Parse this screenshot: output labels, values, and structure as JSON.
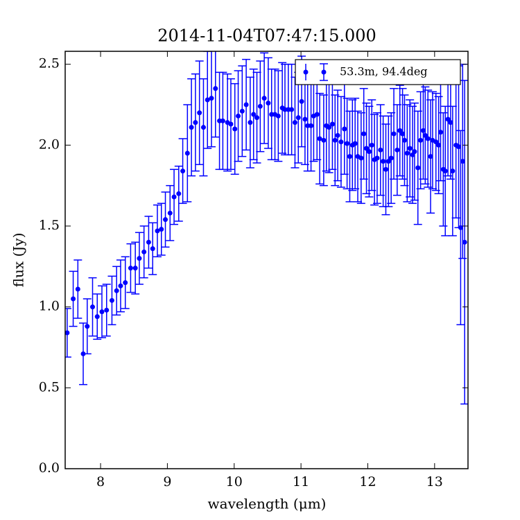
{
  "chart_data": {
    "type": "errorbar",
    "title": "2014-11-04T07:47:15.000",
    "x_label": "wavelength (μm)",
    "y_label": "flux (Jy)",
    "xlim": [
      7.47,
      13.5
    ],
    "ylim": [
      0,
      2.58
    ],
    "xticks": [
      8,
      9,
      10,
      11,
      12,
      13
    ],
    "yticks": [
      {
        "value": 0,
        "label": "0.0"
      },
      {
        "value": 0.5,
        "label": "0.5"
      },
      {
        "value": 1,
        "label": "1.0"
      },
      {
        "value": 1.5,
        "label": "1.5"
      },
      {
        "value": 2,
        "label": "2.0"
      },
      {
        "value": 2.5,
        "label": "2.5"
      }
    ],
    "legend": "upper right",
    "x": [
      7.5,
      7.59,
      7.66,
      7.74,
      7.8,
      7.88,
      7.95,
      8.02,
      8.09,
      8.17,
      8.24,
      8.3,
      8.37,
      8.45,
      8.52,
      8.58,
      8.65,
      8.72,
      8.78,
      8.85,
      8.91,
      8.97,
      9.04,
      9.1,
      9.17,
      9.23,
      9.3,
      9.36,
      9.42,
      9.48,
      9.54,
      9.6,
      9.66,
      9.72,
      9.78,
      9.83,
      9.9,
      9.95,
      10.01,
      10.06,
      10.12,
      10.18,
      10.24,
      10.29,
      10.34,
      10.39,
      10.45,
      10.51,
      10.56,
      10.61,
      10.66,
      10.72,
      10.76,
      10.81,
      10.86,
      10.91,
      10.96,
      11.01,
      11.06,
      11.1,
      11.15,
      11.19,
      11.24,
      11.28,
      11.34,
      11.38,
      11.42,
      11.47,
      11.51,
      11.55,
      11.6,
      11.65,
      11.69,
      11.73,
      11.77,
      11.81,
      11.85,
      11.9,
      11.94,
      11.98,
      12.02,
      12.06,
      12.1,
      12.14,
      12.19,
      12.23,
      12.27,
      12.31,
      12.35,
      12.39,
      12.44,
      12.48,
      12.52,
      12.55,
      12.59,
      12.63,
      12.67,
      12.7,
      12.75,
      12.79,
      12.83,
      12.86,
      12.9,
      12.94,
      12.97,
      13.02,
      13.06,
      13.09,
      13.13,
      13.16,
      13.2,
      13.24,
      13.27,
      13.32,
      13.36,
      13.39,
      13.42,
      13.45
    ],
    "series": [
      {
        "name": "53.3m, 94.4deg",
        "color": "#0000ff",
        "values": [
          0.84,
          1.05,
          1.11,
          0.71,
          0.88,
          1.0,
          0.94,
          0.97,
          0.98,
          1.04,
          1.1,
          1.13,
          1.15,
          1.24,
          1.24,
          1.3,
          1.34,
          1.4,
          1.36,
          1.47,
          1.48,
          1.54,
          1.58,
          1.68,
          1.7,
          1.84,
          1.95,
          2.11,
          2.14,
          2.2,
          2.11,
          2.28,
          2.29,
          2.35,
          2.15,
          2.15,
          2.14,
          2.13,
          2.1,
          2.18,
          2.21,
          2.25,
          2.14,
          2.19,
          2.17,
          2.24,
          2.29,
          2.26,
          2.19,
          2.19,
          2.18,
          2.23,
          2.22,
          2.22,
          2.22,
          2.14,
          2.17,
          2.27,
          2.16,
          2.12,
          2.12,
          2.18,
          2.19,
          2.04,
          2.03,
          2.12,
          2.11,
          2.13,
          2.03,
          2.06,
          2.02,
          2.1,
          2.01,
          1.93,
          2.0,
          2.01,
          1.93,
          1.92,
          2.07,
          1.98,
          1.96,
          2.0,
          1.91,
          1.92,
          1.97,
          1.9,
          1.85,
          1.9,
          1.92,
          2.07,
          1.97,
          2.09,
          2.07,
          2.03,
          1.95,
          1.98,
          1.94,
          1.96,
          1.86,
          2.03,
          2.09,
          2.06,
          2.04,
          1.93,
          2.03,
          2.02,
          2.0,
          2.08,
          1.85,
          1.84,
          2.16,
          2.14,
          1.84,
          2.0,
          1.99,
          1.49,
          1.9,
          1.4
        ],
        "errors": [
          0.15,
          0.17,
          0.18,
          0.19,
          0.17,
          0.18,
          0.14,
          0.16,
          0.16,
          0.15,
          0.15,
          0.16,
          0.16,
          0.15,
          0.16,
          0.16,
          0.16,
          0.16,
          0.16,
          0.16,
          0.16,
          0.17,
          0.17,
          0.17,
          0.17,
          0.2,
          0.3,
          0.3,
          0.3,
          0.32,
          0.3,
          0.3,
          0.3,
          0.3,
          0.3,
          0.3,
          0.3,
          0.28,
          0.28,
          0.28,
          0.28,
          0.28,
          0.28,
          0.28,
          0.28,
          0.28,
          0.28,
          0.28,
          0.28,
          0.28,
          0.28,
          0.28,
          0.28,
          0.28,
          0.28,
          0.28,
          0.28,
          0.28,
          0.28,
          0.28,
          0.28,
          0.28,
          0.28,
          0.28,
          0.28,
          0.28,
          0.28,
          0.28,
          0.28,
          0.28,
          0.28,
          0.28,
          0.28,
          0.28,
          0.28,
          0.28,
          0.28,
          0.28,
          0.28,
          0.28,
          0.28,
          0.28,
          0.28,
          0.28,
          0.28,
          0.28,
          0.28,
          0.28,
          0.28,
          0.28,
          0.28,
          0.28,
          0.28,
          0.28,
          0.3,
          0.3,
          0.3,
          0.3,
          0.35,
          0.3,
          0.3,
          0.3,
          0.3,
          0.35,
          0.3,
          0.3,
          0.3,
          0.3,
          0.35,
          0.4,
          0.35,
          0.35,
          0.4,
          0.45,
          0.5,
          0.6,
          0.6,
          1.0
        ]
      }
    ]
  }
}
